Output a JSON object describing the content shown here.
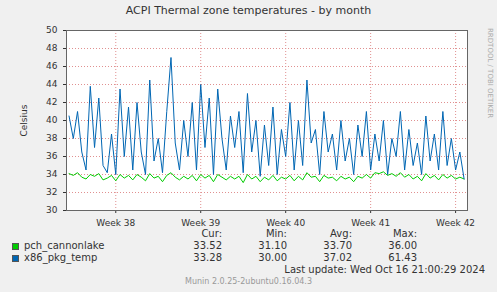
{
  "chart_data": {
    "type": "line",
    "title": "ACPI Thermal zone temperatures - by month",
    "y_label": "Celsius",
    "x": [
      37.45,
      37.5,
      37.55,
      37.6,
      37.65,
      37.7,
      37.75,
      37.8,
      37.85,
      37.9,
      37.95,
      38.0,
      38.05,
      38.1,
      38.15,
      38.2,
      38.25,
      38.3,
      38.35,
      38.4,
      38.45,
      38.5,
      38.55,
      38.6,
      38.65,
      38.7,
      38.75,
      38.8,
      38.85,
      38.9,
      38.95,
      39.0,
      39.05,
      39.1,
      39.15,
      39.2,
      39.25,
      39.3,
      39.35,
      39.4,
      39.45,
      39.5,
      39.55,
      39.6,
      39.65,
      39.7,
      39.75,
      39.8,
      39.85,
      39.9,
      39.95,
      40.0,
      40.05,
      40.1,
      40.15,
      40.2,
      40.25,
      40.3,
      40.35,
      40.4,
      40.45,
      40.5,
      40.55,
      40.6,
      40.65,
      40.7,
      40.75,
      40.8,
      40.85,
      40.9,
      40.95,
      41.0,
      41.05,
      41.1,
      41.15,
      41.2,
      41.25,
      41.3,
      41.35,
      41.4,
      41.45,
      41.5,
      41.55,
      41.6,
      41.65,
      41.7,
      41.75,
      41.8,
      41.85,
      41.9,
      41.95,
      42.0,
      42.05,
      42.1
    ],
    "xlim": [
      37.42,
      42.14
    ],
    "xticks": [
      {
        "value": 38,
        "label": "Week 38"
      },
      {
        "value": 39,
        "label": "Week 39"
      },
      {
        "value": 40,
        "label": "Week 40"
      },
      {
        "value": 41,
        "label": "Week 41"
      },
      {
        "value": 42,
        "label": "Week 42"
      }
    ],
    "ylim": [
      30,
      50
    ],
    "yticks": [
      30,
      32,
      34,
      36,
      38,
      40,
      42,
      44,
      46,
      48,
      50
    ],
    "grid": true,
    "legend": "bottom",
    "stats_headers": [
      "Cur:",
      "Min:",
      "Avg:",
      "Max:"
    ],
    "series": [
      {
        "name": "pch_cannonlake",
        "color": "#00cc00",
        "stats": [
          "33.52",
          "31.10",
          "33.70",
          "36.00"
        ],
        "values": [
          34.1,
          33.9,
          34.2,
          33.7,
          33.5,
          34.0,
          33.8,
          34.1,
          33.4,
          33.6,
          33.9,
          33.3,
          34.0,
          33.6,
          33.9,
          33.4,
          34.0,
          33.7,
          33.3,
          34.1,
          33.6,
          33.8,
          33.2,
          33.9,
          34.2,
          33.7,
          33.4,
          33.8,
          33.5,
          33.9,
          33.3,
          34.0,
          33.6,
          33.9,
          33.2,
          34.0,
          33.7,
          33.4,
          33.8,
          33.5,
          33.8,
          33.1,
          34.0,
          33.5,
          33.8,
          33.2,
          33.7,
          33.4,
          33.9,
          33.3,
          33.7,
          33.5,
          33.9,
          33.3,
          33.8,
          33.4,
          34.2,
          33.7,
          33.8,
          33.2,
          33.9,
          33.6,
          33.7,
          33.3,
          33.8,
          33.5,
          33.7,
          33.2,
          33.8,
          33.6,
          34.0,
          33.6,
          34.2,
          34.1,
          34.3,
          33.9,
          34.1,
          33.8,
          34.2,
          33.7,
          34.0,
          33.5,
          33.8,
          33.3,
          34.1,
          33.6,
          33.9,
          33.4,
          34.0,
          33.6,
          33.9,
          33.5,
          33.7,
          33.5
        ]
      },
      {
        "name": "x86_pkg_temp",
        "color": "#0066b3",
        "stats": [
          "33.28",
          "30.00",
          "37.02",
          "61.43"
        ],
        "values": [
          40.5,
          38.0,
          41.0,
          36.5,
          34.5,
          43.8,
          37.0,
          42.5,
          35.0,
          34.2,
          38.5,
          34.0,
          43.5,
          36.0,
          41.5,
          34.5,
          42.0,
          36.5,
          34.0,
          44.5,
          35.5,
          38.0,
          34.2,
          41.0,
          47.0,
          37.5,
          34.5,
          40.0,
          36.0,
          42.0,
          34.5,
          44.0,
          37.0,
          42.5,
          34.0,
          43.5,
          38.0,
          34.5,
          40.5,
          37.0,
          41.0,
          34.2,
          43.0,
          36.5,
          40.0,
          33.8,
          39.5,
          35.0,
          41.5,
          34.0,
          39.0,
          36.0,
          42.0,
          34.5,
          40.0,
          35.0,
          44.5,
          37.5,
          39.0,
          34.0,
          41.0,
          36.5,
          38.5,
          34.5,
          40.0,
          35.5,
          38.0,
          34.0,
          39.5,
          36.0,
          41.0,
          34.5,
          38.5,
          35.5,
          40.0,
          34.0,
          38.0,
          36.0,
          41.0,
          34.5,
          39.0,
          35.0,
          37.5,
          34.0,
          40.5,
          35.5,
          38.5,
          34.5,
          41.0,
          35.0,
          38.0,
          34.5,
          36.5,
          33.5
        ]
      }
    ],
    "last_update": "Last update: Wed Oct 16 21:00:29 2024",
    "footer": "Munin 2.0.25-2ubuntu0.16.04.3",
    "watermark": "RRDTOOL / TOBI OETIKER"
  }
}
